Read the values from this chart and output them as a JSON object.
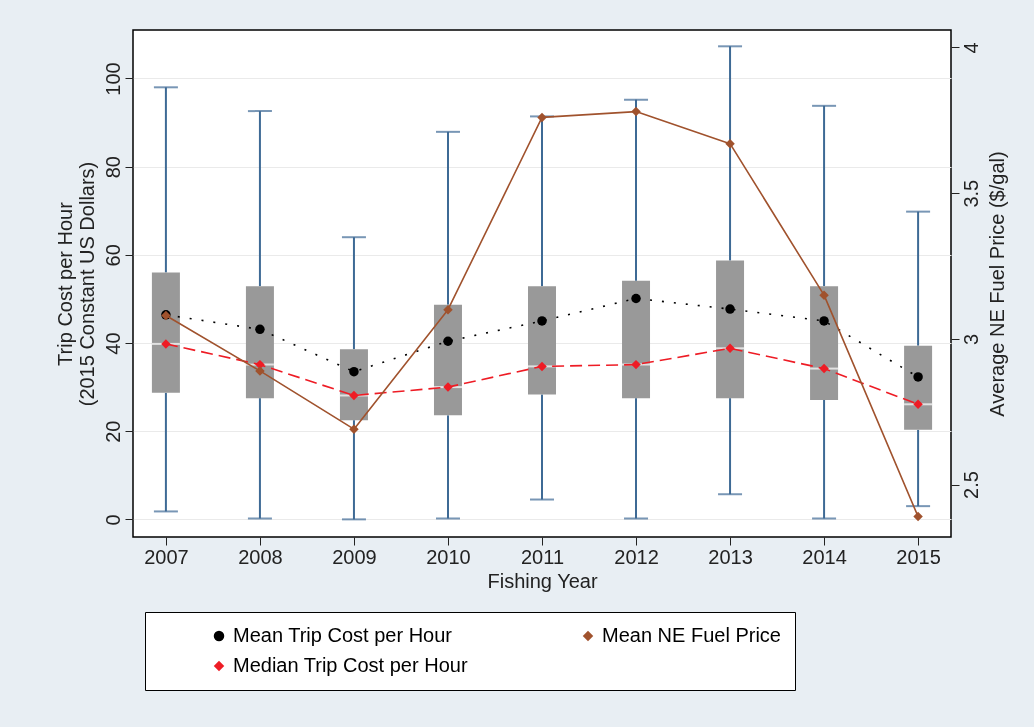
{
  "chart_data": {
    "type": "box",
    "xlabel": "Fishing Year",
    "ylabel": "Trip Cost per Hour\n(2015 Constant US Dollars)",
    "y2label": "Average NE Fuel Price ($/gal)",
    "categories": [
      "2007",
      "2008",
      "2009",
      "2010",
      "2011",
      "2012",
      "2013",
      "2014",
      "2015"
    ],
    "ylim": [
      -4,
      111
    ],
    "yticks": [
      0,
      20,
      40,
      60,
      80,
      100
    ],
    "y2lim": [
      2.32,
      4.06
    ],
    "y2ticks": [
      2.5,
      3,
      3.5,
      4
    ],
    "grid": "y",
    "legend": "bottom",
    "series": [
      {
        "type": "box",
        "color": "#999999",
        "boxes": [
          {
            "low": 1.8,
            "q1": 28.7,
            "median": 39.8,
            "q3": 56.0,
            "high": 98.0
          },
          {
            "low": 0.2,
            "q1": 27.5,
            "median": 35.1,
            "q3": 52.9,
            "high": 92.6
          },
          {
            "low": 0,
            "q1": 22.5,
            "median": 28.1,
            "q3": 38.6,
            "high": 64.0
          },
          {
            "low": 0.2,
            "q1": 23.6,
            "median": 30.0,
            "q3": 48.7,
            "high": 87.9
          },
          {
            "low": 4.5,
            "q1": 28.3,
            "median": 34.7,
            "q3": 52.9,
            "high": 91.4
          },
          {
            "low": 0.2,
            "q1": 27.5,
            "median": 35.1,
            "q3": 54.1,
            "high": 95.2
          },
          {
            "low": 5.7,
            "q1": 27.5,
            "median": 38.8,
            "q3": 58.7,
            "high": 107.3
          },
          {
            "low": 0.2,
            "q1": 27.1,
            "median": 34.2,
            "q3": 52.9,
            "high": 93.8
          },
          {
            "low": 3.0,
            "q1": 20.3,
            "median": 26.1,
            "q3": 39.4,
            "high": 69.8
          }
        ]
      },
      {
        "type": "line",
        "name": "Mean Trip Cost per Hour",
        "color": "#000000",
        "marker": "circle",
        "line_style": "dotted",
        "values": [
          46.4,
          43.1,
          33.5,
          40.4,
          45.0,
          50.1,
          47.7,
          45.0,
          32.3
        ]
      },
      {
        "type": "line",
        "name": "Median Trip Cost per Hour",
        "color": "#ee1c25",
        "marker": "diamond",
        "line_style": "dashed",
        "values": [
          39.8,
          35.1,
          28.1,
          30.0,
          34.7,
          35.1,
          38.8,
          34.2,
          26.1
        ]
      },
      {
        "type": "line",
        "name": "Mean NE Fuel Price",
        "color": "#a0522d",
        "marker": "diamond",
        "line_style": "solid",
        "axis": "y2",
        "values": [
          3.08,
          2.89,
          2.69,
          3.1,
          3.76,
          3.78,
          3.67,
          3.15,
          2.39
        ]
      }
    ]
  }
}
